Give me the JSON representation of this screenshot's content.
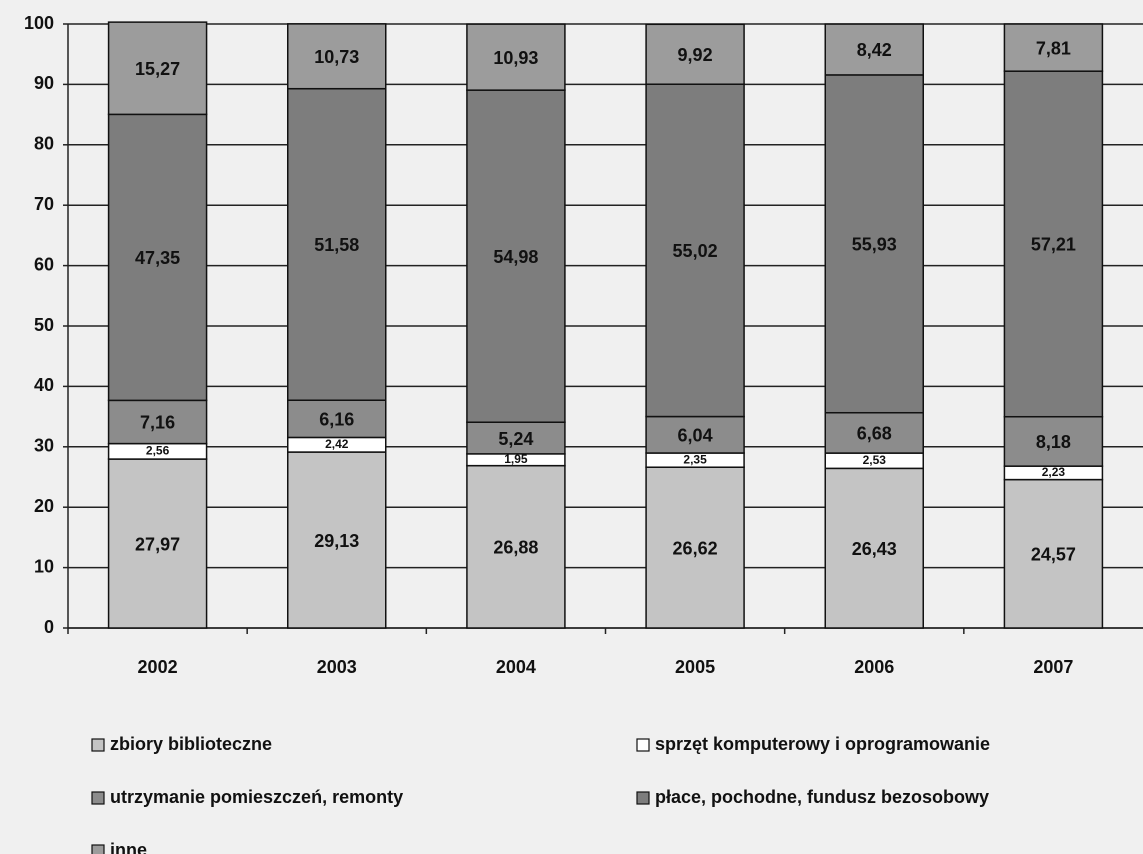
{
  "chart_data": {
    "type": "stacked_bar",
    "categories": [
      "2002",
      "2003",
      "2004",
      "2005",
      "2006",
      "2007"
    ],
    "series": [
      {
        "name": "zbiory biblioteczne",
        "color": "#c4c4c4",
        "values": [
          27.97,
          29.13,
          26.88,
          26.62,
          26.43,
          24.57
        ],
        "value_labels": [
          "27,97",
          "29,13",
          "26,88",
          "26,62",
          "26,43",
          "24,57"
        ]
      },
      {
        "name": "sprzęt komputerowy i oprogramowanie",
        "color": "#ffffff",
        "values": [
          2.56,
          2.42,
          1.95,
          2.35,
          2.53,
          2.23
        ],
        "value_labels": [
          "2,56",
          "2,42",
          "1,95",
          "2,35",
          "2,53",
          "2,23"
        ]
      },
      {
        "name": "utrzymanie pomieszczeń, remonty",
        "color": "#8c8c8c",
        "values": [
          7.16,
          6.16,
          5.24,
          6.04,
          6.68,
          8.18
        ],
        "value_labels": [
          "7,16",
          "6,16",
          "5,24",
          "6,04",
          "6,68",
          "8,18"
        ]
      },
      {
        "name": "płace, pochodne, fundusz bezosobowy",
        "color": "#7d7d7d",
        "values": [
          47.35,
          51.58,
          54.98,
          55.02,
          55.93,
          57.21
        ],
        "value_labels": [
          "47,35",
          "51,58",
          "54,98",
          "55,02",
          "55,93",
          "57,21"
        ]
      },
      {
        "name": "inne",
        "color": "#9c9c9c",
        "values": [
          15.27,
          10.73,
          10.93,
          9.92,
          8.42,
          7.81
        ],
        "value_labels": [
          "15,27",
          "10,73",
          "10,93",
          "9,92",
          "8,42",
          "7,81"
        ]
      }
    ],
    "ylim": [
      0,
      100
    ],
    "yticks": [
      0,
      10,
      20,
      30,
      40,
      50,
      60,
      70,
      80,
      90,
      100
    ],
    "grid": true,
    "legend": "bottom"
  }
}
